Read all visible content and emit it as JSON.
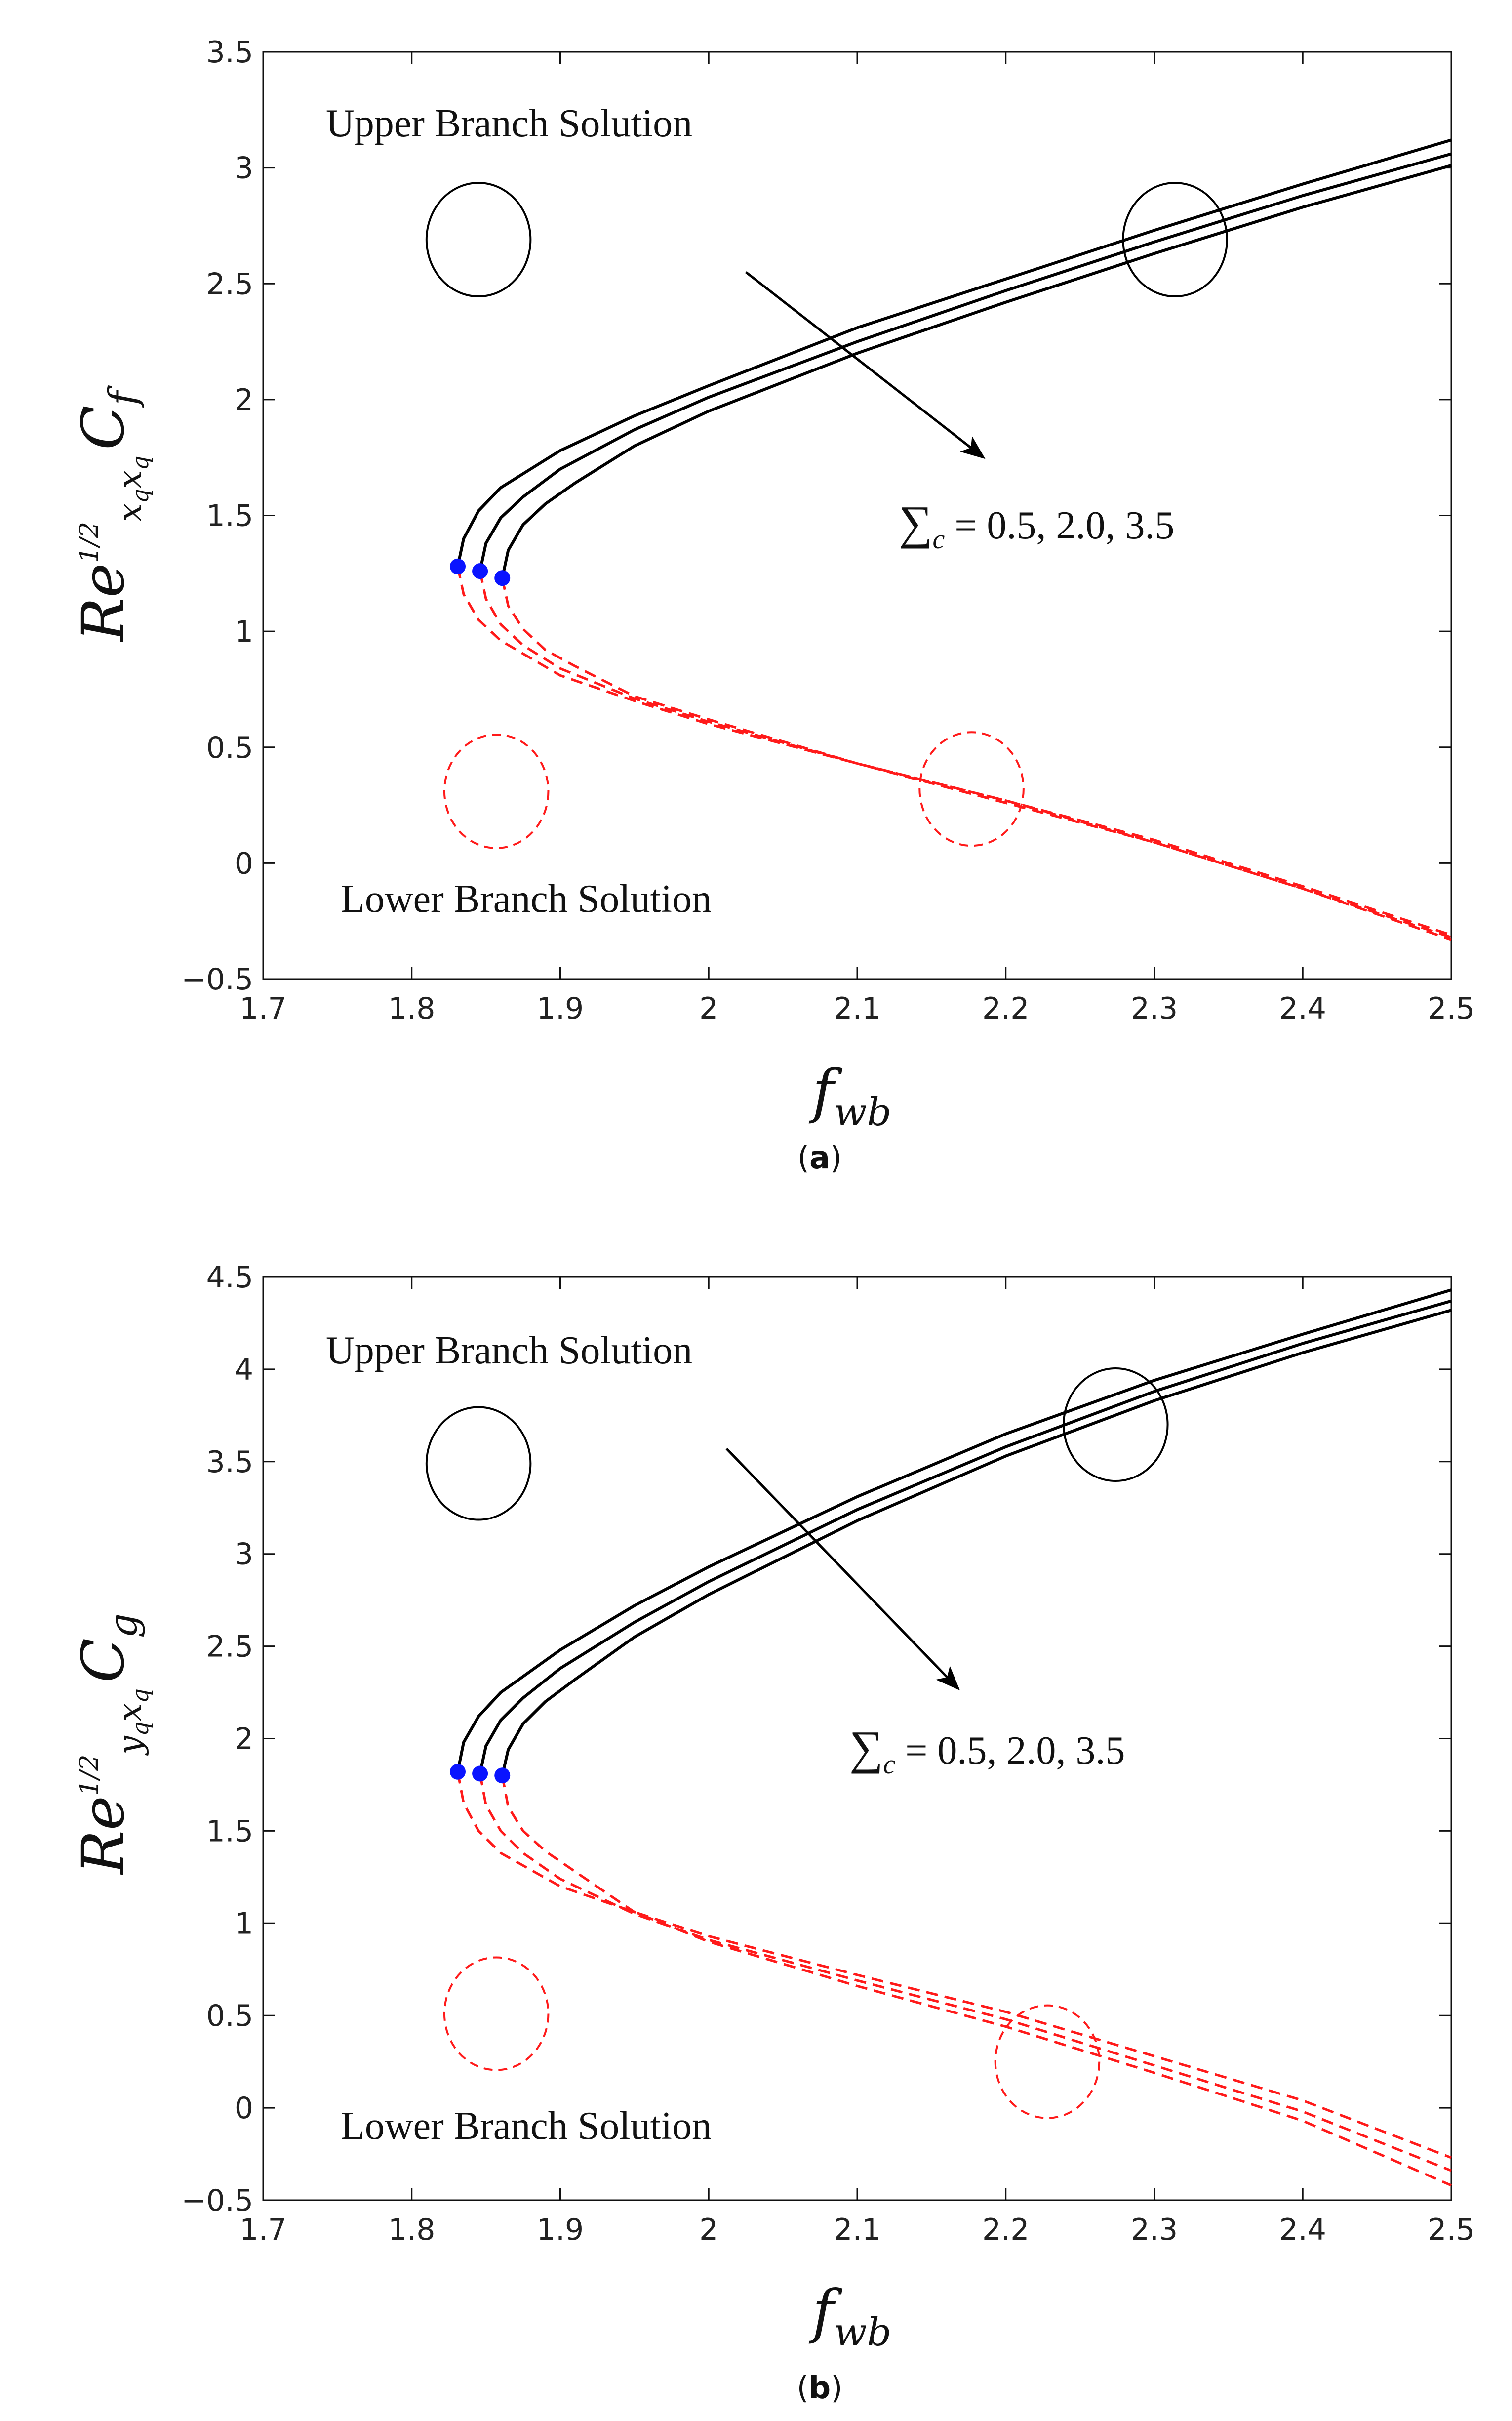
{
  "chart_data": [
    {
      "id": "a",
      "type": "line",
      "caption_open": "(",
      "caption_letter": "a",
      "caption_close": ")",
      "xlabel": {
        "base": "f",
        "sub": "wb"
      },
      "ylabel": {
        "base": "Re",
        "sup": "1/2",
        "sub": "x",
        "subsub": "q",
        "sub2": "x",
        "sub2sub": "q",
        "coef": "C",
        "coef_sub": "f"
      },
      "xlim": [
        1.7,
        2.5
      ],
      "ylim": [
        -0.5,
        3.5
      ],
      "xticks": [
        1.7,
        1.8,
        1.9,
        2.0,
        2.1,
        2.2,
        2.3,
        2.4,
        2.5
      ],
      "xtick_labels": [
        "1.7",
        "1.8",
        "1.9",
        "2",
        "2.1",
        "2.2",
        "2.3",
        "2.4",
        "2.5"
      ],
      "yticks": [
        -0.5,
        0,
        0.5,
        1,
        1.5,
        2,
        2.5,
        3,
        3.5
      ],
      "ytick_labels": [
        "−0.5",
        "0",
        "0.5",
        "1",
        "1.5",
        "2",
        "2.5",
        "3",
        "3.5"
      ],
      "annotations": {
        "upper": "Upper Branch Solution",
        "lower": "Lower Branch Solution",
        "param_symbol": "∑",
        "param_sub": "c",
        "param_values": " = 0.5, 2.0, 3.5"
      },
      "arrow": {
        "from": [
          2.025,
          2.55
        ],
        "to": [
          2.185,
          1.75
        ]
      },
      "upper_ellipse": {
        "cx": 2.314,
        "cy": 2.69,
        "rx": 0.035,
        "ry": 0.245
      },
      "lower_ellipse": {
        "cx": 2.177,
        "cy": 0.32,
        "rx": 0.035,
        "ry": 0.245
      },
      "legend_upper_ellipse": {
        "cx": 1.845,
        "cy": 2.69,
        "rx": 0.035,
        "ry": 0.245
      },
      "legend_lower_ellipse": {
        "cx": 1.857,
        "cy": 0.31,
        "rx": 0.035,
        "ry": 0.245
      },
      "series": [
        {
          "name": "Σc = 0.5",
          "critical": {
            "x": 1.831,
            "y": 1.28
          },
          "upper": {
            "x": [
              1.831,
              1.835,
              1.845,
              1.86,
              1.9,
              1.95,
              2.0,
              2.1,
              2.2,
              2.3,
              2.4,
              2.5
            ],
            "y": [
              1.28,
              1.4,
              1.52,
              1.62,
              1.78,
              1.93,
              2.06,
              2.31,
              2.52,
              2.73,
              2.93,
              3.12
            ]
          },
          "lower": {
            "x": [
              1.831,
              1.835,
              1.845,
              1.86,
              1.9,
              1.95,
              2.0,
              2.1,
              2.2,
              2.3,
              2.4,
              2.5
            ],
            "y": [
              1.28,
              1.16,
              1.05,
              0.96,
              0.81,
              0.7,
              0.6,
              0.43,
              0.27,
              0.1,
              -0.1,
              -0.31
            ]
          }
        },
        {
          "name": "Σc = 2.0",
          "critical": {
            "x": 1.846,
            "y": 1.26
          },
          "upper": {
            "x": [
              1.846,
              1.85,
              1.86,
              1.875,
              1.9,
              1.95,
              2.0,
              2.1,
              2.2,
              2.3,
              2.4,
              2.5
            ],
            "y": [
              1.26,
              1.38,
              1.49,
              1.58,
              1.7,
              1.87,
              2.01,
              2.25,
              2.47,
              2.68,
              2.88,
              3.06
            ]
          },
          "lower": {
            "x": [
              1.846,
              1.85,
              1.86,
              1.875,
              1.9,
              1.95,
              2.0,
              2.1,
              2.2,
              2.3,
              2.4,
              2.5
            ],
            "y": [
              1.26,
              1.14,
              1.03,
              0.94,
              0.84,
              0.71,
              0.61,
              0.43,
              0.27,
              0.09,
              -0.11,
              -0.32
            ]
          }
        },
        {
          "name": "Σc = 3.5",
          "critical": {
            "x": 1.861,
            "y": 1.23
          },
          "upper": {
            "x": [
              1.861,
              1.865,
              1.875,
              1.89,
              1.91,
              1.95,
              2.0,
              2.1,
              2.2,
              2.3,
              2.4,
              2.5
            ],
            "y": [
              1.23,
              1.35,
              1.46,
              1.55,
              1.64,
              1.8,
              1.95,
              2.2,
              2.42,
              2.63,
              2.83,
              3.01
            ]
          },
          "lower": {
            "x": [
              1.861,
              1.865,
              1.875,
              1.89,
              1.91,
              1.95,
              2.0,
              2.1,
              2.2,
              2.3,
              2.4,
              2.5
            ],
            "y": [
              1.23,
              1.11,
              1.01,
              0.92,
              0.85,
              0.72,
              0.62,
              0.43,
              0.26,
              0.09,
              -0.11,
              -0.33
            ]
          }
        }
      ]
    },
    {
      "id": "b",
      "type": "line",
      "caption_open": "(",
      "caption_letter": "b",
      "caption_close": ")",
      "xlabel": {
        "base": "f",
        "sub": "wb"
      },
      "ylabel": {
        "base": "Re",
        "sup": "1/2",
        "sub": "y",
        "subsub": "q",
        "sub2": "x",
        "sub2sub": "q",
        "coef": "C",
        "coef_sub": "g"
      },
      "xlim": [
        1.7,
        2.5
      ],
      "ylim": [
        -0.5,
        4.5
      ],
      "xticks": [
        1.7,
        1.8,
        1.9,
        2.0,
        2.1,
        2.2,
        2.3,
        2.4,
        2.5
      ],
      "xtick_labels": [
        "1.7",
        "1.8",
        "1.9",
        "2",
        "2.1",
        "2.2",
        "2.3",
        "2.4",
        "2.5"
      ],
      "yticks": [
        -0.5,
        0,
        0.5,
        1,
        1.5,
        2,
        2.5,
        3,
        3.5,
        4,
        4.5
      ],
      "ytick_labels": [
        "−0.5",
        "0",
        "0.5",
        "1",
        "1.5",
        "2",
        "2.5",
        "3",
        "3.5",
        "4",
        "4.5"
      ],
      "annotations": {
        "upper": "Upper Branch Solution",
        "lower": "Lower Branch Solution",
        "param_symbol": "∑",
        "param_sub": "c",
        "param_values": " = 0.5, 2.0, 3.5"
      },
      "arrow": {
        "from": [
          2.012,
          3.57
        ],
        "to": [
          2.168,
          2.27
        ]
      },
      "upper_ellipse": {
        "cx": 2.274,
        "cy": 3.7,
        "rx": 0.035,
        "ry": 0.305
      },
      "lower_ellipse": {
        "cx": 2.228,
        "cy": 0.25,
        "rx": 0.035,
        "ry": 0.305
      },
      "legend_upper_ellipse": {
        "cx": 1.845,
        "cy": 3.49,
        "rx": 0.035,
        "ry": 0.305
      },
      "legend_lower_ellipse": {
        "cx": 1.857,
        "cy": 0.51,
        "rx": 0.035,
        "ry": 0.305
      },
      "series": [
        {
          "name": "Σc = 0.5",
          "critical": {
            "x": 1.831,
            "y": 1.82
          },
          "upper": {
            "x": [
              1.831,
              1.835,
              1.845,
              1.86,
              1.9,
              1.95,
              2.0,
              2.1,
              2.2,
              2.3,
              2.4,
              2.5
            ],
            "y": [
              1.82,
              1.98,
              2.12,
              2.25,
              2.48,
              2.72,
              2.93,
              3.31,
              3.65,
              3.94,
              4.19,
              4.43
            ]
          },
          "lower": {
            "x": [
              1.831,
              1.835,
              1.845,
              1.86,
              1.9,
              1.95,
              2.0,
              2.1,
              2.2,
              2.3,
              2.4,
              2.5
            ],
            "y": [
              1.82,
              1.65,
              1.5,
              1.38,
              1.2,
              1.06,
              0.93,
              0.72,
              0.52,
              0.28,
              0.04,
              -0.27
            ]
          }
        },
        {
          "name": "Σc = 2.0",
          "critical": {
            "x": 1.846,
            "y": 1.81
          },
          "upper": {
            "x": [
              1.846,
              1.85,
              1.86,
              1.875,
              1.9,
              1.95,
              2.0,
              2.1,
              2.2,
              2.3,
              2.4,
              2.5
            ],
            "y": [
              1.81,
              1.96,
              2.1,
              2.22,
              2.38,
              2.63,
              2.85,
              3.24,
              3.58,
              3.88,
              4.14,
              4.37
            ]
          },
          "lower": {
            "x": [
              1.846,
              1.85,
              1.86,
              1.875,
              1.9,
              1.95,
              2.0,
              2.1,
              2.2,
              2.3,
              2.4,
              2.5
            ],
            "y": [
              1.81,
              1.64,
              1.5,
              1.38,
              1.24,
              1.05,
              0.91,
              0.69,
              0.48,
              0.23,
              -0.02,
              -0.34
            ]
          }
        },
        {
          "name": "Σc = 3.5",
          "critical": {
            "x": 1.861,
            "y": 1.8
          },
          "upper": {
            "x": [
              1.861,
              1.865,
              1.875,
              1.89,
              1.91,
              1.95,
              2.0,
              2.1,
              2.2,
              2.3,
              2.4,
              2.5
            ],
            "y": [
              1.8,
              1.94,
              2.08,
              2.2,
              2.32,
              2.55,
              2.78,
              3.18,
              3.53,
              3.83,
              4.09,
              4.32
            ]
          },
          "lower": {
            "x": [
              1.861,
              1.865,
              1.875,
              1.89,
              1.91,
              1.95,
              2.0,
              2.1,
              2.2,
              2.3,
              2.4,
              2.5
            ],
            "y": [
              1.8,
              1.63,
              1.5,
              1.39,
              1.28,
              1.06,
              0.9,
              0.66,
              0.44,
              0.19,
              -0.07,
              -0.42
            ]
          }
        }
      ]
    }
  ],
  "colors": {
    "upper_line": "#000000",
    "lower_line": "#ff1a1a",
    "critical_point": "#0a14ff",
    "frame": "#111111",
    "arrow": "#000000"
  }
}
